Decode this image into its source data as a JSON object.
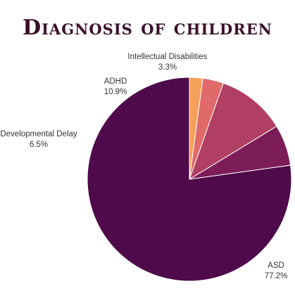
{
  "chart_data": {
    "type": "pie",
    "title": "Diagnosis of children",
    "slices": [
      {
        "label": "ASD",
        "value": 77.2,
        "value_label": "77.2%",
        "color": "#4e0a4a"
      },
      {
        "label": "Developmental Delay",
        "value": 6.5,
        "value_label": "6.5%",
        "color": "#7c1d59"
      },
      {
        "label": "ADHD",
        "value": 10.9,
        "value_label": "10.9%",
        "color": "#b13f64"
      },
      {
        "label": "Intellectual Disabilities",
        "value": 3.3,
        "value_label": "3.3%",
        "color": "#e0696a"
      },
      {
        "label": "",
        "value": 2.1,
        "value_label": "",
        "color": "#f5a05a"
      }
    ],
    "start_angle": "top",
    "direction": "counterclockwise",
    "legend": "none"
  }
}
